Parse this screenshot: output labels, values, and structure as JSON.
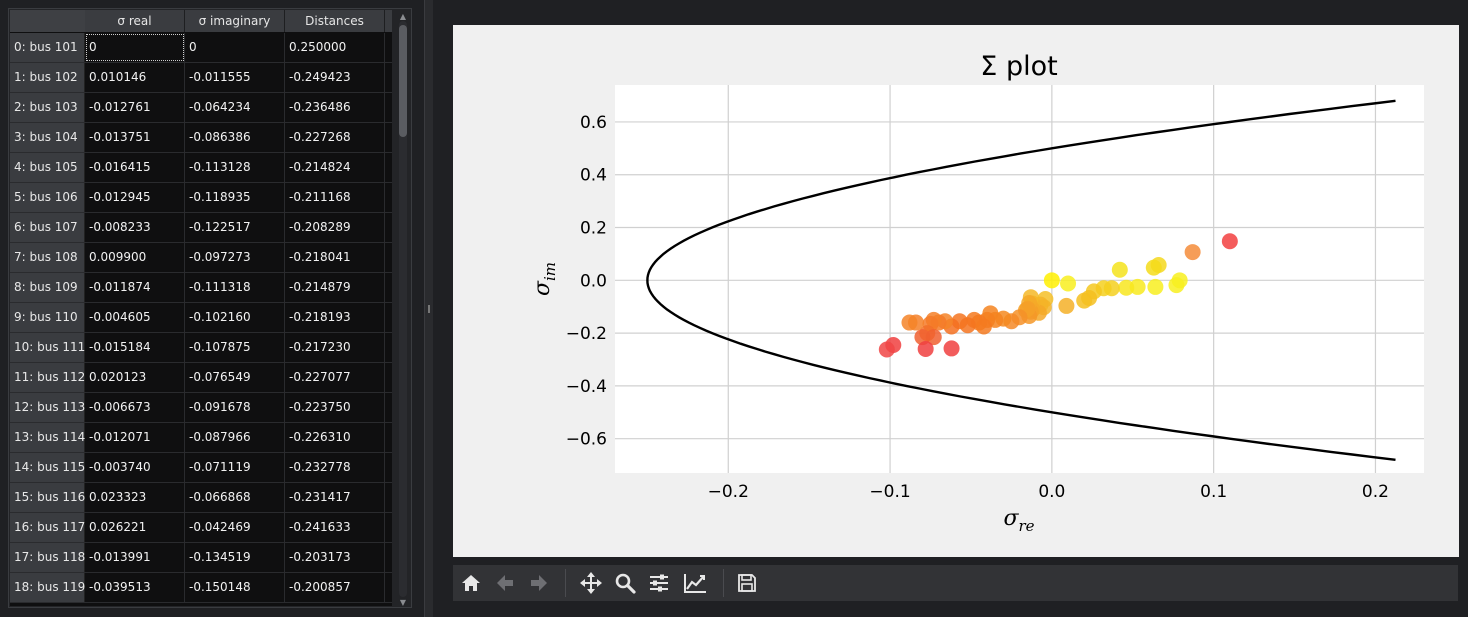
{
  "table": {
    "columns": [
      "σ real",
      "σ imaginary",
      "Distances"
    ],
    "rows": [
      {
        "label": "0: bus 101",
        "re": "0",
        "im": "0",
        "dist": "0.250000"
      },
      {
        "label": "1: bus 102",
        "re": "0.010146",
        "im": "-0.011555",
        "dist": "-0.249423"
      },
      {
        "label": "2: bus 103",
        "re": "-0.012761",
        "im": "-0.064234",
        "dist": "-0.236486"
      },
      {
        "label": "3: bus 104",
        "re": "-0.013751",
        "im": "-0.086386",
        "dist": "-0.227268"
      },
      {
        "label": "4: bus 105",
        "re": "-0.016415",
        "im": "-0.113128",
        "dist": "-0.214824"
      },
      {
        "label": "5: bus 106",
        "re": "-0.012945",
        "im": "-0.118935",
        "dist": "-0.211168"
      },
      {
        "label": "6: bus 107",
        "re": "-0.008233",
        "im": "-0.122517",
        "dist": "-0.208289"
      },
      {
        "label": "7: bus 108",
        "re": "0.009900",
        "im": "-0.097273",
        "dist": "-0.218041"
      },
      {
        "label": "8: bus 109",
        "re": "-0.011874",
        "im": "-0.111318",
        "dist": "-0.214879"
      },
      {
        "label": "9: bus 110",
        "re": "-0.004605",
        "im": "-0.102160",
        "dist": "-0.218193"
      },
      {
        "label": "10: bus 111",
        "re": "-0.015184",
        "im": "-0.107875",
        "dist": "-0.217230"
      },
      {
        "label": "11: bus 112",
        "re": "0.020123",
        "im": "-0.076549",
        "dist": "-0.227077"
      },
      {
        "label": "12: bus 113",
        "re": "-0.006673",
        "im": "-0.091678",
        "dist": "-0.223750"
      },
      {
        "label": "13: bus 114",
        "re": "-0.012071",
        "im": "-0.087966",
        "dist": "-0.226310"
      },
      {
        "label": "14: bus 115",
        "re": "-0.003740",
        "im": "-0.071119",
        "dist": "-0.232778"
      },
      {
        "label": "15: bus 116",
        "re": "0.023323",
        "im": "-0.066868",
        "dist": "-0.231417"
      },
      {
        "label": "16: bus 117",
        "re": "0.026221",
        "im": "-0.042469",
        "dist": "-0.241633"
      },
      {
        "label": "17: bus 118",
        "re": "-0.013991",
        "im": "-0.134519",
        "dist": "-0.203173"
      },
      {
        "label": "18: bus 119",
        "re": "-0.039513",
        "im": "-0.150148",
        "dist": "-0.200857"
      }
    ]
  },
  "chart_data": {
    "type": "scatter",
    "title": "Σ plot",
    "xlabel": "σ_re",
    "ylabel": "σ_im",
    "xlim": [
      -0.27,
      0.23
    ],
    "ylim": [
      -0.73,
      0.74
    ],
    "xticks": [
      -0.2,
      -0.1,
      0.0,
      0.1,
      0.2
    ],
    "xtick_labels": [
      "−0.2",
      "−0.1",
      "0.0",
      "0.1",
      "0.2"
    ],
    "yticks": [
      0.6,
      0.4,
      0.2,
      0.0,
      -0.2,
      -0.4,
      -0.6
    ],
    "ytick_labels": [
      "0.6",
      "0.4",
      "0.2",
      "0.0",
      "−0.2",
      "−0.4",
      "−0.6"
    ],
    "grid": true,
    "boundary_curve": {
      "description": "parabola re = im^2 - 0.25",
      "color": "#000000"
    },
    "points": [
      {
        "x": 0.11,
        "y": 0.148,
        "color": "#f24040"
      },
      {
        "x": 0.087,
        "y": 0.107,
        "color": "#f58c3a"
      },
      {
        "x": 0.066,
        "y": 0.058,
        "color": "#f5d81e"
      },
      {
        "x": 0.063,
        "y": 0.048,
        "color": "#f5dc1a"
      },
      {
        "x": 0.079,
        "y": 0.0,
        "color": "#f8f020"
      },
      {
        "x": 0.077,
        "y": -0.018,
        "color": "#f8f020"
      },
      {
        "x": 0.064,
        "y": -0.025,
        "color": "#f8ee20"
      },
      {
        "x": 0.053,
        "y": -0.025,
        "color": "#f8ea20"
      },
      {
        "x": 0.046,
        "y": -0.028,
        "color": "#f8e620"
      },
      {
        "x": 0.042,
        "y": 0.04,
        "color": "#f5e31c"
      },
      {
        "x": 0.037,
        "y": -0.03,
        "color": "#f5d020"
      },
      {
        "x": 0.032,
        "y": -0.03,
        "color": "#f5d020"
      },
      {
        "x": 0.026,
        "y": -0.042,
        "color": "#f5c820"
      },
      {
        "x": 0.023,
        "y": -0.067,
        "color": "#f5c020"
      },
      {
        "x": 0.02,
        "y": -0.077,
        "color": "#f5c020"
      },
      {
        "x": 0.01,
        "y": -0.012,
        "color": "#f8ee20"
      },
      {
        "x": 0.009,
        "y": -0.097,
        "color": "#f5b028"
      },
      {
        "x": 0.0,
        "y": 0.0,
        "color": "#fff000"
      },
      {
        "x": -0.004,
        "y": -0.071,
        "color": "#f5c028"
      },
      {
        "x": -0.005,
        "y": -0.102,
        "color": "#f5b428"
      },
      {
        "x": -0.007,
        "y": -0.092,
        "color": "#f5b428"
      },
      {
        "x": -0.008,
        "y": -0.123,
        "color": "#f5a828"
      },
      {
        "x": -0.012,
        "y": -0.088,
        "color": "#f5b028"
      },
      {
        "x": -0.012,
        "y": -0.111,
        "color": "#f5a828"
      },
      {
        "x": -0.013,
        "y": -0.064,
        "color": "#f5b828"
      },
      {
        "x": -0.013,
        "y": -0.119,
        "color": "#f5a028"
      },
      {
        "x": -0.014,
        "y": -0.086,
        "color": "#f5a828"
      },
      {
        "x": -0.014,
        "y": -0.135,
        "color": "#f59828"
      },
      {
        "x": -0.015,
        "y": -0.108,
        "color": "#f5a028"
      },
      {
        "x": -0.016,
        "y": -0.113,
        "color": "#f5a028"
      },
      {
        "x": -0.02,
        "y": -0.14,
        "color": "#f59028"
      },
      {
        "x": -0.025,
        "y": -0.155,
        "color": "#f58a28"
      },
      {
        "x": -0.03,
        "y": -0.145,
        "color": "#f58a20"
      },
      {
        "x": -0.035,
        "y": -0.15,
        "color": "#f58420"
      },
      {
        "x": -0.038,
        "y": -0.125,
        "color": "#f58420"
      },
      {
        "x": -0.04,
        "y": -0.15,
        "color": "#f58020"
      },
      {
        "x": -0.042,
        "y": -0.175,
        "color": "#f57a20"
      },
      {
        "x": -0.045,
        "y": -0.16,
        "color": "#f57a20"
      },
      {
        "x": -0.048,
        "y": -0.15,
        "color": "#f57a20"
      },
      {
        "x": -0.052,
        "y": -0.17,
        "color": "#f57420"
      },
      {
        "x": -0.057,
        "y": -0.155,
        "color": "#f57420"
      },
      {
        "x": -0.062,
        "y": -0.175,
        "color": "#f57020"
      },
      {
        "x": -0.066,
        "y": -0.155,
        "color": "#f58428"
      },
      {
        "x": -0.07,
        "y": -0.16,
        "color": "#f57a28"
      },
      {
        "x": -0.073,
        "y": -0.15,
        "color": "#f58028"
      },
      {
        "x": -0.075,
        "y": -0.165,
        "color": "#f57a28"
      },
      {
        "x": -0.077,
        "y": -0.2,
        "color": "#f26e28"
      },
      {
        "x": -0.08,
        "y": -0.215,
        "color": "#f06030"
      },
      {
        "x": -0.084,
        "y": -0.16,
        "color": "#f58028"
      },
      {
        "x": -0.088,
        "y": -0.16,
        "color": "#f58428"
      },
      {
        "x": -0.073,
        "y": -0.215,
        "color": "#f06030"
      },
      {
        "x": -0.062,
        "y": -0.258,
        "color": "#f04040"
      },
      {
        "x": -0.078,
        "y": -0.26,
        "color": "#f04040"
      },
      {
        "x": -0.098,
        "y": -0.245,
        "color": "#f04040"
      },
      {
        "x": -0.102,
        "y": -0.262,
        "color": "#f04545"
      }
    ]
  },
  "toolbar": {
    "buttons": [
      "home-icon",
      "back-icon",
      "forward-icon",
      "pan-icon",
      "zoom-icon",
      "configure-subplots-icon",
      "edit-axes-icon",
      "save-icon"
    ]
  }
}
